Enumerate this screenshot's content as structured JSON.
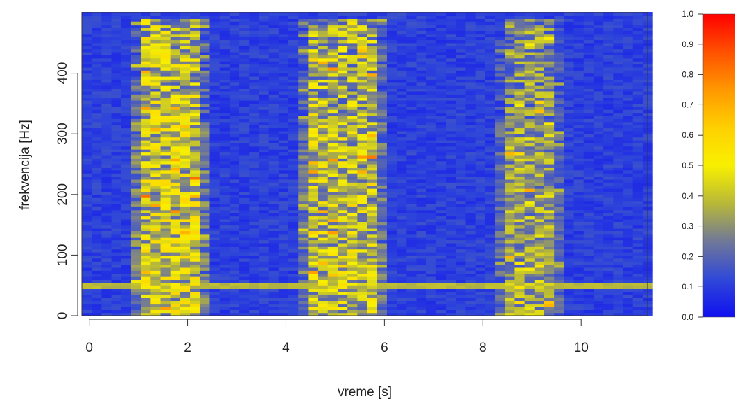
{
  "chart_data": {
    "type": "heatmap",
    "title": "",
    "xlabel": "vreme [s]",
    "ylabel": "frekvencija [Hz]",
    "xlim": [
      -0.15,
      11.35
    ],
    "ylim": [
      0,
      500
    ],
    "x_ticks": [
      "0",
      "2",
      "4",
      "6",
      "8",
      "10"
    ],
    "y_ticks": [
      "0",
      "100",
      "200",
      "300",
      "400"
    ],
    "colorbar": {
      "range": [
        0.0,
        1.0
      ],
      "ticks": [
        "0.0",
        "0.1",
        "0.2",
        "0.3",
        "0.4",
        "0.5",
        "0.6",
        "0.7",
        "0.8",
        "0.9",
        "1.0"
      ],
      "colors": [
        "#1010f0",
        "#3048d8",
        "#707898",
        "#b8b838",
        "#f8f000",
        "#ffd000",
        "#ff9800",
        "#ff5000",
        "#ff0000"
      ]
    },
    "time_step_s": 0.2,
    "freq_step_hz": 5,
    "speech_segments": [
      {
        "t_start": 0.9,
        "t_end": 2.4,
        "f_max": 490,
        "level": 0.45
      },
      {
        "t_start": 4.3,
        "t_end": 6.1,
        "f_max": 490,
        "level": 0.42
      },
      {
        "t_start": 8.2,
        "t_end": 9.6,
        "f_max": 490,
        "level": 0.35
      }
    ],
    "tone_line": {
      "f_hz": 50,
      "level": 0.35
    },
    "background_level": 0.06
  }
}
